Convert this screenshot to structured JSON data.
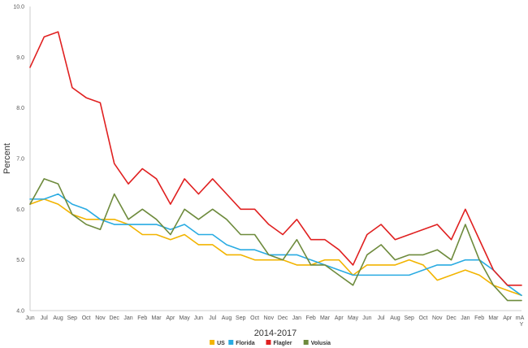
{
  "chart_data": {
    "type": "line",
    "title": "",
    "xlabel": "2014-2017",
    "ylabel": "Percent",
    "ylim": [
      4.0,
      10.0
    ],
    "yticks": [
      "4.0",
      "5.0",
      "6.0",
      "7.0",
      "8.0",
      "9.0",
      "10.0"
    ],
    "grid": false,
    "legend_position": "bottom-center",
    "categories": [
      "Jun",
      "Jul",
      "Aug",
      "Sep",
      "Oct",
      "Nov",
      "Dec",
      "Jan",
      "Feb",
      "Mar",
      "Apr",
      "May",
      "Jun",
      "Jul",
      "Aug",
      "Sep",
      "Oct",
      "Nov",
      "Dec",
      "Jan",
      "Feb",
      "Mar",
      "Apr",
      "May",
      "Jun",
      "Jul",
      "Aug",
      "Sep",
      "Oct",
      "Nov",
      "Dec",
      "Jan",
      "Feb",
      "Mar",
      "Apr",
      "mAY"
    ],
    "series": [
      {
        "name": "US",
        "color": "#f2b400",
        "values": [
          6.1,
          6.2,
          6.1,
          5.9,
          5.8,
          5.8,
          5.8,
          5.7,
          5.5,
          5.5,
          5.4,
          5.5,
          5.3,
          5.3,
          5.1,
          5.1,
          5.0,
          5.0,
          5.0,
          4.9,
          4.9,
          5.0,
          5.0,
          4.7,
          4.9,
          4.9,
          4.9,
          5.0,
          4.9,
          4.6,
          4.7,
          4.8,
          4.7,
          4.5,
          4.4,
          4.3
        ]
      },
      {
        "name": "Florida",
        "color": "#29abe2",
        "values": [
          6.2,
          6.2,
          6.3,
          6.1,
          6.0,
          5.8,
          5.7,
          5.7,
          5.7,
          5.7,
          5.6,
          5.7,
          5.5,
          5.5,
          5.3,
          5.2,
          5.2,
          5.1,
          5.1,
          5.1,
          5.0,
          4.9,
          4.8,
          4.7,
          4.7,
          4.7,
          4.7,
          4.7,
          4.8,
          4.9,
          4.9,
          5.0,
          5.0,
          4.8,
          4.5,
          4.3
        ]
      },
      {
        "name": "Flagler",
        "color": "#e02020",
        "values": [
          8.8,
          9.4,
          9.5,
          8.4,
          8.2,
          8.1,
          6.9,
          6.5,
          6.8,
          6.6,
          6.1,
          6.6,
          6.3,
          6.6,
          6.3,
          6.0,
          6.0,
          5.7,
          5.5,
          5.8,
          5.4,
          5.4,
          5.2,
          4.9,
          5.5,
          5.7,
          5.4,
          5.5,
          5.6,
          5.7,
          5.4,
          6.0,
          5.4,
          4.8,
          4.5,
          4.5
        ]
      },
      {
        "name": "Volusia",
        "color": "#6e8b3d",
        "values": [
          6.1,
          6.6,
          6.5,
          5.9,
          5.7,
          5.6,
          6.3,
          5.8,
          6.0,
          5.8,
          5.5,
          6.0,
          5.8,
          6.0,
          5.8,
          5.5,
          5.5,
          5.1,
          5.0,
          5.4,
          4.9,
          4.9,
          4.7,
          4.5,
          5.1,
          5.3,
          5.0,
          5.1,
          5.1,
          5.2,
          5.0,
          5.7,
          5.0,
          4.5,
          4.2,
          4.2
        ]
      }
    ]
  }
}
